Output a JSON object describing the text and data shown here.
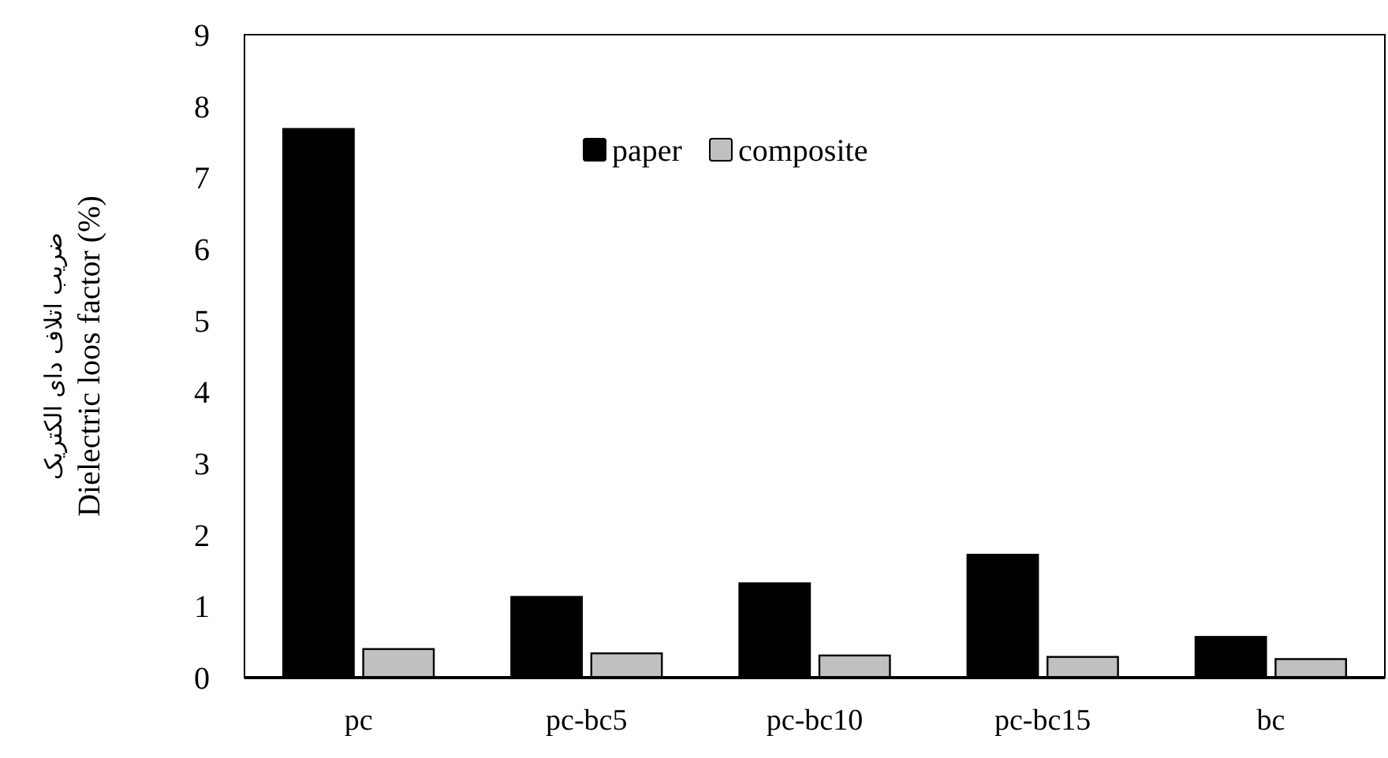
{
  "chart_data": {
    "type": "bar",
    "ylabel": "ضریب اتلاف دای الکتریک\nDielectric loos factor (%)",
    "categories": [
      "pc",
      "pc-bc5",
      "pc-bc10",
      "pc-bc15",
      "bc"
    ],
    "series": [
      {
        "name": "paper",
        "color": "#000000",
        "values": [
          7.68,
          1.13,
          1.32,
          1.72,
          0.57
        ]
      },
      {
        "name": "composite",
        "color": "#c0c0c0",
        "values": [
          0.4,
          0.34,
          0.31,
          0.29,
          0.26
        ]
      }
    ],
    "ylim": [
      0,
      9
    ],
    "yticks": [
      0,
      1,
      2,
      3,
      4,
      5,
      6,
      7,
      8,
      9
    ],
    "grid": false,
    "legend": "top"
  }
}
